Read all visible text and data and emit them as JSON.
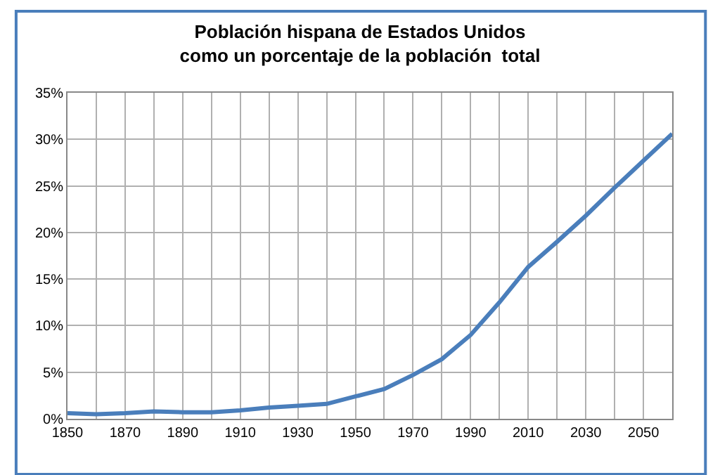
{
  "chart_data": {
    "type": "line",
    "title": "Población hispana de Estados Unidos\ncomo un porcentaje de la población  total",
    "x": [
      1850,
      1860,
      1870,
      1880,
      1890,
      1900,
      1910,
      1920,
      1930,
      1940,
      1950,
      1960,
      1970,
      1980,
      1990,
      2000,
      2010,
      2020,
      2030,
      2040,
      2050,
      2060
    ],
    "series": [
      {
        "color": "#4a7ebb",
        "values": [
          0.6,
          0.5,
          0.6,
          0.8,
          0.7,
          0.7,
          0.9,
          1.2,
          1.4,
          1.6,
          2.4,
          3.2,
          4.7,
          6.4,
          9.0,
          12.5,
          16.3,
          19.0,
          21.8,
          24.8,
          27.7,
          30.6
        ]
      }
    ],
    "xlim": [
      1850,
      2060
    ],
    "xticks": [
      1850,
      {
        "value": 1860,
        "label": null
      },
      1870,
      {
        "value": 1880,
        "label": null
      },
      1890,
      {
        "value": 1900,
        "label": null
      },
      1910,
      {
        "value": 1920,
        "label": null
      },
      1930,
      {
        "value": 1940,
        "label": null
      },
      1950,
      {
        "value": 1960,
        "label": null
      },
      1970,
      {
        "value": 1980,
        "label": null
      },
      1990,
      {
        "value": 2000,
        "label": null
      },
      2010,
      {
        "value": 2020,
        "label": null
      },
      2030,
      {
        "value": 2040,
        "label": null
      },
      2050,
      {
        "value": 2060,
        "label": null
      }
    ],
    "ylim": [
      0,
      35
    ],
    "yticks": [
      {
        "value": 0,
        "label": "0%"
      },
      {
        "value": 5,
        "label": "5%"
      },
      {
        "value": 10,
        "label": "10%"
      },
      {
        "value": 15,
        "label": "15%"
      },
      {
        "value": 20,
        "label": "20%"
      },
      {
        "value": 25,
        "label": "25%"
      },
      {
        "value": 30,
        "label": "30%"
      },
      {
        "value": 35,
        "label": "35%"
      }
    ],
    "grid": true,
    "marker": "none",
    "line_style": "solid"
  }
}
